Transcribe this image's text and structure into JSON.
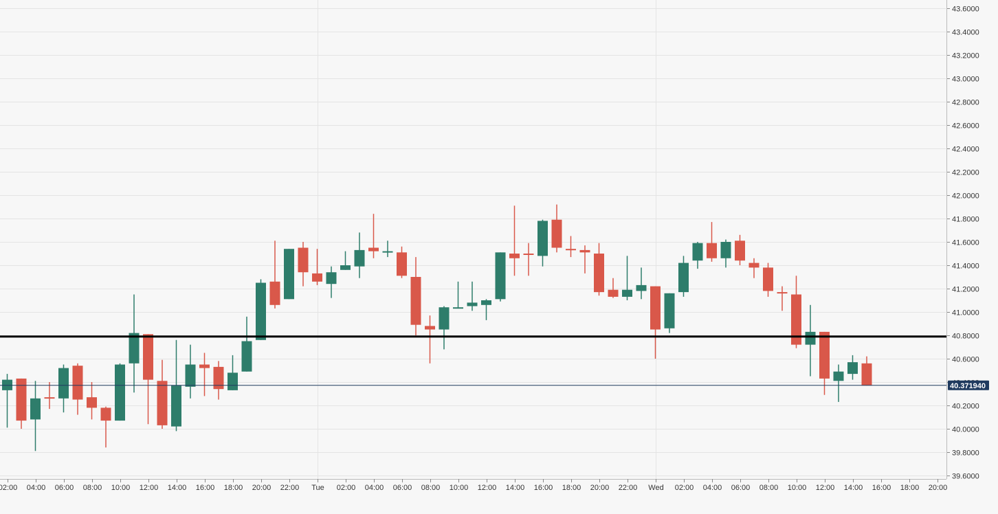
{
  "colors": {
    "background": "#f7f7f7",
    "grid": "#e4e4e4",
    "up": "#2e7d6b",
    "down": "#d9584a",
    "level_line": "#000000",
    "price_line": "#1f3a5f",
    "price_tag_bg": "#1f3a5f",
    "price_tag_text": "#ffffff",
    "axis_text": "#333333"
  },
  "chart_data": {
    "type": "candlestick",
    "title": "",
    "y_axis_side": "right",
    "ylim": [
      39.55,
      43.65
    ],
    "yticks": [
      39.6,
      39.8,
      40.0,
      40.2,
      40.4,
      40.6,
      40.8,
      41.0,
      41.2,
      41.4,
      41.6,
      41.8,
      42.0,
      42.2,
      42.4,
      42.6,
      42.8,
      43.0,
      43.2,
      43.4,
      43.6
    ],
    "ytick_labels": [
      "39.6000",
      "39.8000",
      "40.0000",
      "40.2000",
      "40.4000",
      "40.6000",
      "40.8000",
      "41.0000",
      "41.2000",
      "41.4000",
      "41.6000",
      "41.8000",
      "42.0000",
      "42.2000",
      "42.4000",
      "42.6000",
      "42.8000",
      "43.0000",
      "43.2000",
      "43.4000",
      "43.6000"
    ],
    "x_unit": "hours",
    "xlim": [
      1.8,
      68.3
    ],
    "xticks": [
      {
        "x": 2,
        "label": "02:00"
      },
      {
        "x": 4,
        "label": "04:00"
      },
      {
        "x": 6,
        "label": "06:00"
      },
      {
        "x": 8,
        "label": "08:00"
      },
      {
        "x": 10,
        "label": "10:00"
      },
      {
        "x": 12,
        "label": "12:00"
      },
      {
        "x": 14,
        "label": "14:00"
      },
      {
        "x": 16,
        "label": "16:00"
      },
      {
        "x": 18,
        "label": "18:00"
      },
      {
        "x": 20,
        "label": "20:00"
      },
      {
        "x": 22,
        "label": "22:00"
      },
      {
        "x": 24,
        "label": "Tue"
      },
      {
        "x": 26,
        "label": "02:00"
      },
      {
        "x": 28,
        "label": "04:00"
      },
      {
        "x": 30,
        "label": "06:00"
      },
      {
        "x": 32,
        "label": "08:00"
      },
      {
        "x": 34,
        "label": "10:00"
      },
      {
        "x": 36,
        "label": "12:00"
      },
      {
        "x": 38,
        "label": "14:00"
      },
      {
        "x": 40,
        "label": "16:00"
      },
      {
        "x": 42,
        "label": "18:00"
      },
      {
        "x": 44,
        "label": "20:00"
      },
      {
        "x": 46,
        "label": "22:00"
      },
      {
        "x": 48,
        "label": "Wed"
      },
      {
        "x": 50,
        "label": "02:00"
      },
      {
        "x": 52,
        "label": "04:00"
      },
      {
        "x": 54,
        "label": "06:00"
      },
      {
        "x": 56,
        "label": "08:00"
      },
      {
        "x": 58,
        "label": "10:00"
      },
      {
        "x": 60,
        "label": "12:00"
      },
      {
        "x": 62,
        "label": "14:00"
      },
      {
        "x": 64,
        "label": "16:00"
      },
      {
        "x": 66,
        "label": "18:00"
      },
      {
        "x": 68,
        "label": "20:00"
      }
    ],
    "day_separators": [
      24,
      48
    ],
    "horizontal_level": 40.79,
    "last_price": 40.37194,
    "last_price_label": "40.371940",
    "candles": [
      {
        "x": 2.0,
        "o": 40.33,
        "h": 40.47,
        "l": 40.01,
        "c": 40.42
      },
      {
        "x": 3.0,
        "o": 40.43,
        "h": 40.43,
        "l": 40.0,
        "c": 40.07
      },
      {
        "x": 4.0,
        "o": 40.08,
        "h": 40.41,
        "l": 39.81,
        "c": 40.26
      },
      {
        "x": 5.0,
        "o": 40.27,
        "h": 40.4,
        "l": 40.17,
        "c": 40.26
      },
      {
        "x": 6.0,
        "o": 40.26,
        "h": 40.55,
        "l": 40.14,
        "c": 40.52
      },
      {
        "x": 7.0,
        "o": 40.54,
        "h": 40.56,
        "l": 40.12,
        "c": 40.25
      },
      {
        "x": 8.0,
        "o": 40.27,
        "h": 40.4,
        "l": 40.08,
        "c": 40.18
      },
      {
        "x": 9.0,
        "o": 40.18,
        "h": 40.19,
        "l": 39.84,
        "c": 40.07
      },
      {
        "x": 10.0,
        "o": 40.07,
        "h": 40.56,
        "l": 40.07,
        "c": 40.55
      },
      {
        "x": 11.0,
        "o": 40.56,
        "h": 41.15,
        "l": 40.31,
        "c": 40.82
      },
      {
        "x": 12.0,
        "o": 40.81,
        "h": 40.81,
        "l": 40.04,
        "c": 40.42
      },
      {
        "x": 13.0,
        "o": 40.41,
        "h": 40.59,
        "l": 40.0,
        "c": 40.03
      },
      {
        "x": 14.0,
        "o": 40.02,
        "h": 40.76,
        "l": 39.98,
        "c": 40.37
      },
      {
        "x": 15.0,
        "o": 40.36,
        "h": 40.72,
        "l": 40.26,
        "c": 40.55
      },
      {
        "x": 16.0,
        "o": 40.55,
        "h": 40.65,
        "l": 40.28,
        "c": 40.52
      },
      {
        "x": 17.0,
        "o": 40.53,
        "h": 40.58,
        "l": 40.25,
        "c": 40.34
      },
      {
        "x": 18.0,
        "o": 40.33,
        "h": 40.63,
        "l": 40.33,
        "c": 40.48
      },
      {
        "x": 19.0,
        "o": 40.49,
        "h": 40.96,
        "l": 40.49,
        "c": 40.75
      },
      {
        "x": 20.0,
        "o": 40.76,
        "h": 41.28,
        "l": 40.76,
        "c": 41.25
      },
      {
        "x": 21.0,
        "o": 41.26,
        "h": 41.61,
        "l": 41.03,
        "c": 41.06
      },
      {
        "x": 22.0,
        "o": 41.11,
        "h": 41.54,
        "l": 41.11,
        "c": 41.54
      },
      {
        "x": 23.0,
        "o": 41.55,
        "h": 41.6,
        "l": 41.22,
        "c": 41.34
      },
      {
        "x": 24.0,
        "o": 41.33,
        "h": 41.54,
        "l": 41.23,
        "c": 41.26
      },
      {
        "x": 25.0,
        "o": 41.24,
        "h": 41.39,
        "l": 41.12,
        "c": 41.34
      },
      {
        "x": 26.0,
        "o": 41.36,
        "h": 41.52,
        "l": 41.36,
        "c": 41.4
      },
      {
        "x": 27.0,
        "o": 41.39,
        "h": 41.68,
        "l": 41.29,
        "c": 41.53
      },
      {
        "x": 28.0,
        "o": 41.55,
        "h": 41.84,
        "l": 41.46,
        "c": 41.52
      },
      {
        "x": 29.0,
        "o": 41.51,
        "h": 41.61,
        "l": 41.47,
        "c": 41.52
      },
      {
        "x": 30.0,
        "o": 41.51,
        "h": 41.56,
        "l": 41.29,
        "c": 41.31
      },
      {
        "x": 31.0,
        "o": 41.3,
        "h": 41.47,
        "l": 40.8,
        "c": 40.89
      },
      {
        "x": 32.0,
        "o": 40.88,
        "h": 40.97,
        "l": 40.56,
        "c": 40.85
      },
      {
        "x": 33.0,
        "o": 40.85,
        "h": 41.05,
        "l": 40.68,
        "c": 41.04
      },
      {
        "x": 34.0,
        "o": 41.03,
        "h": 41.26,
        "l": 41.03,
        "c": 41.04
      },
      {
        "x": 35.0,
        "o": 41.05,
        "h": 41.26,
        "l": 41.01,
        "c": 41.08
      },
      {
        "x": 36.0,
        "o": 41.06,
        "h": 41.11,
        "l": 40.93,
        "c": 41.1
      },
      {
        "x": 37.0,
        "o": 41.11,
        "h": 41.51,
        "l": 41.09,
        "c": 41.51
      },
      {
        "x": 38.0,
        "o": 41.5,
        "h": 41.91,
        "l": 41.31,
        "c": 41.46
      },
      {
        "x": 39.0,
        "o": 41.5,
        "h": 41.59,
        "l": 41.31,
        "c": 41.49
      },
      {
        "x": 40.0,
        "o": 41.48,
        "h": 41.79,
        "l": 41.39,
        "c": 41.78
      },
      {
        "x": 41.0,
        "o": 41.79,
        "h": 41.92,
        "l": 41.51,
        "c": 41.55
      },
      {
        "x": 42.0,
        "o": 41.54,
        "h": 41.65,
        "l": 41.47,
        "c": 41.53
      },
      {
        "x": 43.0,
        "o": 41.53,
        "h": 41.57,
        "l": 41.33,
        "c": 41.51
      },
      {
        "x": 44.0,
        "o": 41.5,
        "h": 41.59,
        "l": 41.14,
        "c": 41.17
      },
      {
        "x": 45.0,
        "o": 41.19,
        "h": 41.29,
        "l": 41.12,
        "c": 41.13
      },
      {
        "x": 46.0,
        "o": 41.13,
        "h": 41.48,
        "l": 41.1,
        "c": 41.19
      },
      {
        "x": 47.0,
        "o": 41.18,
        "h": 41.38,
        "l": 41.11,
        "c": 41.23
      },
      {
        "x": 48.0,
        "o": 41.22,
        "h": 41.22,
        "l": 40.6,
        "c": 40.85
      },
      {
        "x": 49.0,
        "o": 40.86,
        "h": 41.16,
        "l": 40.82,
        "c": 41.16
      },
      {
        "x": 50.0,
        "o": 41.17,
        "h": 41.48,
        "l": 41.13,
        "c": 41.42
      },
      {
        "x": 51.0,
        "o": 41.44,
        "h": 41.6,
        "l": 41.37,
        "c": 41.59
      },
      {
        "x": 52.0,
        "o": 41.59,
        "h": 41.77,
        "l": 41.43,
        "c": 41.46
      },
      {
        "x": 53.0,
        "o": 41.46,
        "h": 41.62,
        "l": 41.38,
        "c": 41.6
      },
      {
        "x": 54.0,
        "o": 41.61,
        "h": 41.66,
        "l": 41.4,
        "c": 41.44
      },
      {
        "x": 55.0,
        "o": 41.42,
        "h": 41.46,
        "l": 41.29,
        "c": 41.38
      },
      {
        "x": 56.0,
        "o": 41.38,
        "h": 41.42,
        "l": 41.13,
        "c": 41.18
      },
      {
        "x": 57.0,
        "o": 41.17,
        "h": 41.22,
        "l": 41.01,
        "c": 41.16
      },
      {
        "x": 58.0,
        "o": 41.15,
        "h": 41.31,
        "l": 40.69,
        "c": 40.72
      },
      {
        "x": 59.0,
        "o": 40.72,
        "h": 41.06,
        "l": 40.45,
        "c": 40.83
      },
      {
        "x": 60.0,
        "o": 40.83,
        "h": 40.83,
        "l": 40.29,
        "c": 40.43
      },
      {
        "x": 61.0,
        "o": 40.41,
        "h": 40.55,
        "l": 40.23,
        "c": 40.49
      },
      {
        "x": 62.0,
        "o": 40.47,
        "h": 40.63,
        "l": 40.42,
        "c": 40.57
      },
      {
        "x": 63.0,
        "o": 40.56,
        "h": 40.62,
        "l": 40.37,
        "c": 40.37
      }
    ]
  }
}
